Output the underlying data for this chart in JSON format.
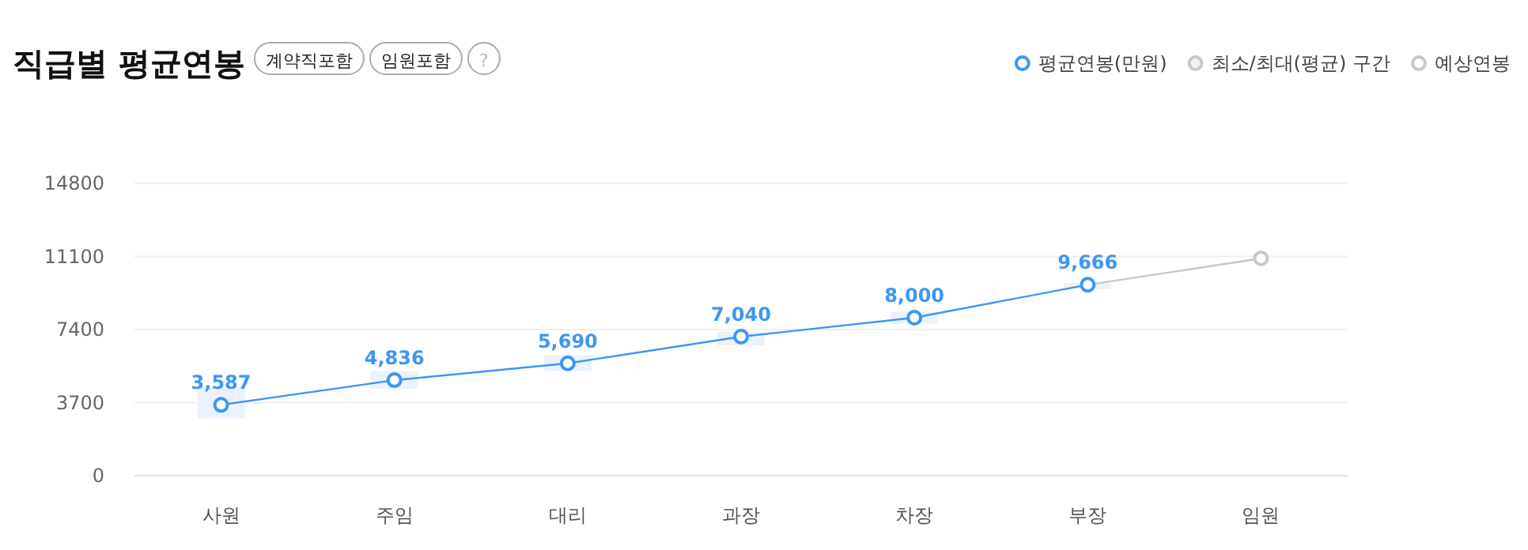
{
  "chart_data": {
    "type": "line",
    "title": "직급별 평균연봉",
    "annotations": [
      "계약직포함",
      "임원포함",
      "?"
    ],
    "categories": [
      "사원",
      "주임",
      "대리",
      "과장",
      "차장",
      "부장",
      "임원"
    ],
    "ylim": [
      0,
      14800
    ],
    "yticks": [
      0,
      3700,
      7400,
      11100,
      14800
    ],
    "grid": "y",
    "legend": "top right",
    "marker": "circle",
    "series": [
      {
        "name": "최소/최대(평균) 구간",
        "type": "bar",
        "color": "#eaf2fc",
        "base": [
          2900,
          4400,
          5300,
          6600,
          7700,
          9450,
          null
        ],
        "values": [
          1600,
          900,
          800,
          700,
          600,
          300,
          null
        ]
      },
      {
        "name": "평균연봉(만원)",
        "color": "#3d96f5",
        "values": [
          3587,
          4836,
          5690,
          7040,
          8000,
          9666,
          null
        ],
        "value_labels": [
          "3,587",
          "4,836",
          "5,690",
          "7,040",
          "8,000",
          "9,666",
          null
        ]
      },
      {
        "name": "예상연봉",
        "color": "#c8c8c8",
        "values": [
          null,
          null,
          null,
          null,
          null,
          9666,
          11000
        ]
      }
    ]
  }
}
